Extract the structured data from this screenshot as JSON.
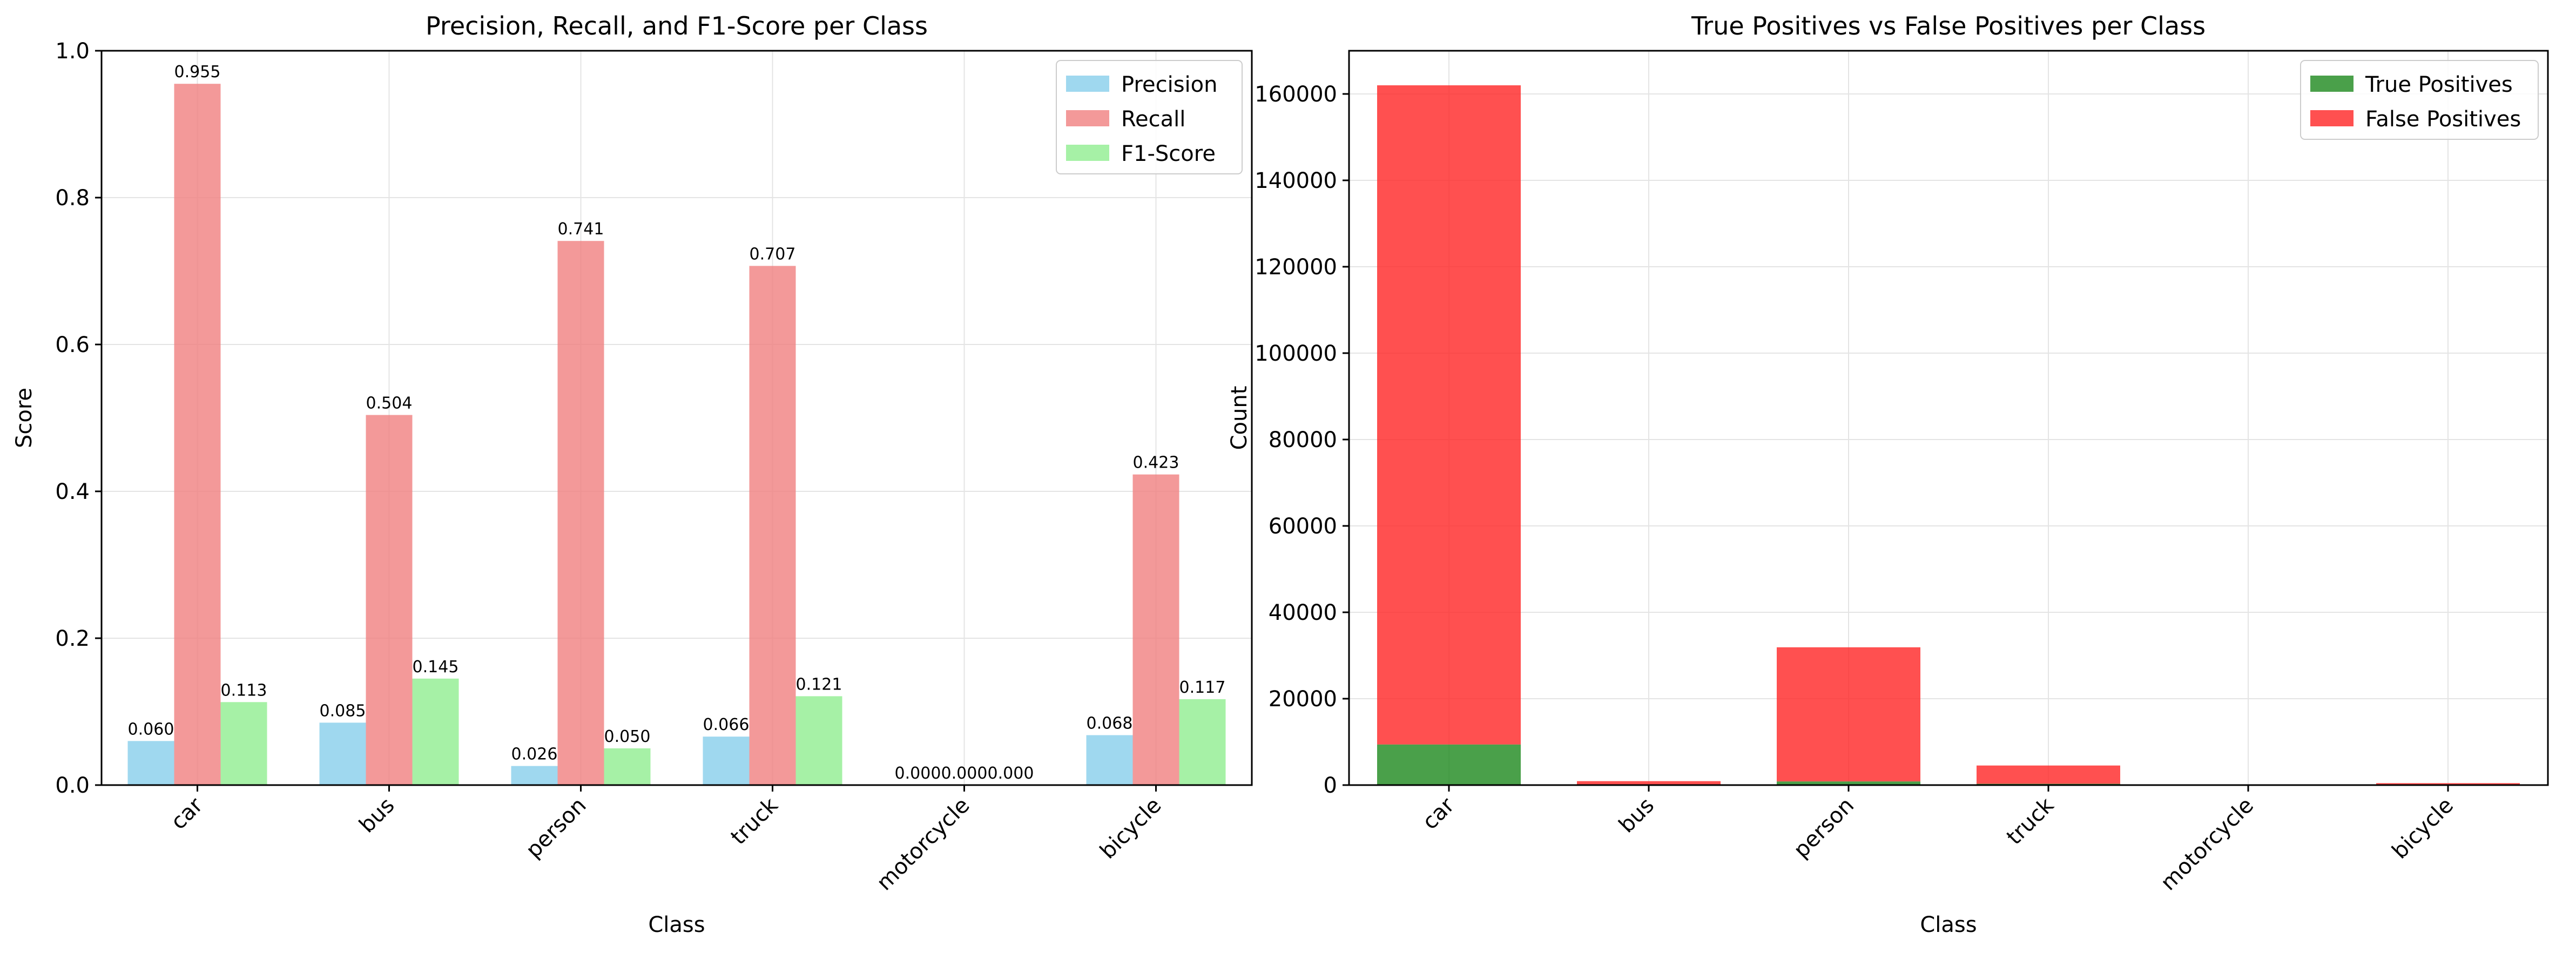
{
  "chart_data": [
    {
      "type": "bar",
      "title": "Precision, Recall, and F1-Score per Class",
      "xlabel": "Class",
      "ylabel": "Score",
      "categories": [
        "car",
        "bus",
        "person",
        "truck",
        "motorcycle",
        "bicycle"
      ],
      "series": [
        {
          "name": "Precision",
          "color": "#87ceeb",
          "values": [
            0.06,
            0.085,
            0.026,
            0.066,
            0.0,
            0.068
          ],
          "labels": [
            "0.060",
            "0.085",
            "0.026",
            "0.066",
            "0.000",
            "0.068"
          ]
        },
        {
          "name": "Recall",
          "color": "#f08080",
          "values": [
            0.955,
            0.504,
            0.741,
            0.707,
            0.0,
            0.423
          ],
          "labels": [
            "0.955",
            "0.504",
            "0.741",
            "0.707",
            "0.000",
            "0.423"
          ]
        },
        {
          "name": "F1-Score",
          "color": "#90ee90",
          "values": [
            0.113,
            0.145,
            0.05,
            0.121,
            0.0,
            0.117
          ],
          "labels": [
            "0.113",
            "0.145",
            "0.050",
            "0.121",
            "0.000",
            "0.117"
          ]
        }
      ],
      "ylim": [
        0,
        1.0
      ],
      "yticks": [
        "0.0",
        "0.2",
        "0.4",
        "0.6",
        "0.8",
        "1.0"
      ],
      "grid": true,
      "legend": "top-right"
    },
    {
      "type": "bar",
      "stacked": true,
      "title": "True Positives vs False Positives per Class",
      "xlabel": "Class",
      "ylabel": "Count",
      "categories": [
        "car",
        "bus",
        "person",
        "truck",
        "motorcycle",
        "bicycle"
      ],
      "series": [
        {
          "name": "True Positives",
          "color": "#228b22",
          "values": [
            9400,
            80,
            850,
            300,
            0,
            30
          ]
        },
        {
          "name": "False Positives",
          "color": "#ff2a2a",
          "values": [
            152600,
            830,
            31050,
            4230,
            150,
            420
          ]
        }
      ],
      "ylim": [
        0,
        170000
      ],
      "yticks": [
        "0",
        "20000",
        "40000",
        "60000",
        "80000",
        "100000",
        "120000",
        "140000",
        "160000"
      ],
      "grid": true,
      "legend": "top-right"
    }
  ]
}
